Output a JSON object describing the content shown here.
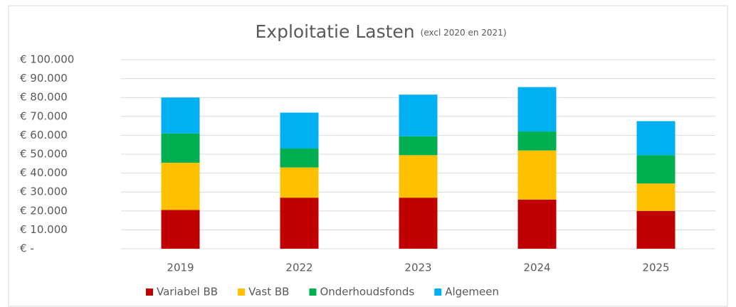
{
  "chart_data": {
    "type": "stacked_bar",
    "title": "Exploitatie Lasten",
    "subtitle": "(excl 2020 en 2021)",
    "categories": [
      "2019",
      "2022",
      "2023",
      "2024",
      "2025"
    ],
    "series": [
      {
        "name": "Variabel BB",
        "color": "#c00000",
        "values": [
          20500,
          27000,
          27000,
          26000,
          20000
        ]
      },
      {
        "name": "Vast BB",
        "color": "#ffc000",
        "values": [
          25000,
          16000,
          22500,
          26000,
          14500
        ]
      },
      {
        "name": "Onderhoudsfonds",
        "color": "#00b050",
        "values": [
          15500,
          10000,
          10000,
          10000,
          15000
        ]
      },
      {
        "name": "Algemeen",
        "color": "#00b0f0",
        "values": [
          19000,
          19000,
          22000,
          23500,
          18000
        ]
      }
    ],
    "ylim": [
      0,
      100000
    ],
    "yticks": [
      {
        "value": 0,
        "label": "€ -"
      },
      {
        "value": 10000,
        "label": "€ 10.000"
      },
      {
        "value": 20000,
        "label": "€ 20.000"
      },
      {
        "value": 30000,
        "label": "€ 30.000"
      },
      {
        "value": 40000,
        "label": "€ 40.000"
      },
      {
        "value": 50000,
        "label": "€ 50.000"
      },
      {
        "value": 60000,
        "label": "€ 60.000"
      },
      {
        "value": 70000,
        "label": "€ 70.000"
      },
      {
        "value": 80000,
        "label": "€ 80.000"
      },
      {
        "value": 90000,
        "label": "€ 90.000"
      },
      {
        "value": 100000,
        "label": "€ 100.000"
      }
    ],
    "grid": true,
    "legend": "bottom"
  }
}
